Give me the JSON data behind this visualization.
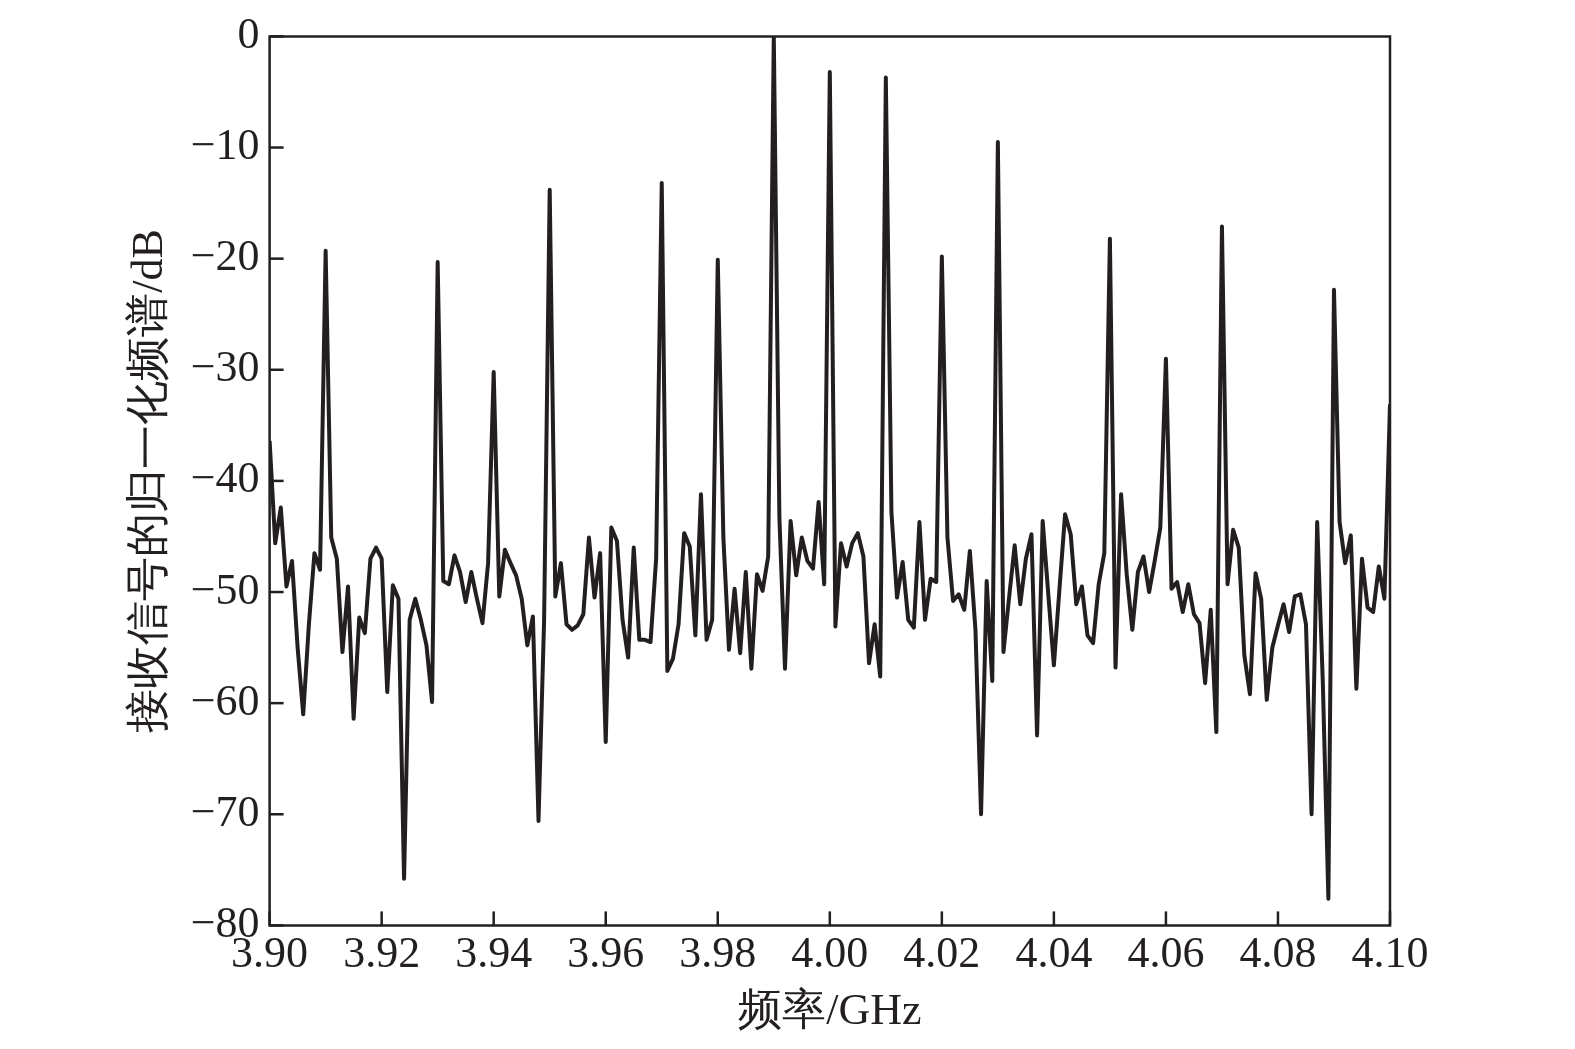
{
  "chart_data": {
    "type": "line",
    "xlabel": "频率/GHz",
    "ylabel": "接收信号的归一化频谱/dB",
    "x": [
      3.9,
      3.901,
      3.902,
      3.903,
      3.904,
      3.905,
      3.906,
      3.907,
      3.908,
      3.909,
      3.91,
      3.911,
      3.912,
      3.913,
      3.914,
      3.915,
      3.916,
      3.917,
      3.918,
      3.919,
      3.92,
      3.921,
      3.922,
      3.923,
      3.924,
      3.925,
      3.926,
      3.927,
      3.928,
      3.929,
      3.93,
      3.931,
      3.932,
      3.933,
      3.934,
      3.935,
      3.936,
      3.937,
      3.938,
      3.939,
      3.94,
      3.941,
      3.942,
      3.943,
      3.944,
      3.945,
      3.946,
      3.947,
      3.948,
      3.949,
      3.95,
      3.951,
      3.952,
      3.953,
      3.954,
      3.955,
      3.956,
      3.957,
      3.958,
      3.959,
      3.96,
      3.961,
      3.962,
      3.963,
      3.964,
      3.965,
      3.966,
      3.967,
      3.968,
      3.969,
      3.97,
      3.971,
      3.972,
      3.973,
      3.974,
      3.975,
      3.976,
      3.977,
      3.978,
      3.979,
      3.98,
      3.981,
      3.982,
      3.983,
      3.984,
      3.985,
      3.986,
      3.987,
      3.988,
      3.989,
      3.99,
      3.991,
      3.992,
      3.993,
      3.994,
      3.995,
      3.996,
      3.997,
      3.998,
      3.999,
      4.0,
      4.001,
      4.002,
      4.003,
      4.004,
      4.005,
      4.006,
      4.007,
      4.008,
      4.009,
      4.01,
      4.011,
      4.012,
      4.013,
      4.014,
      4.015,
      4.016,
      4.017,
      4.018,
      4.019,
      4.02,
      4.021,
      4.022,
      4.023,
      4.024,
      4.025,
      4.026,
      4.027,
      4.028,
      4.029,
      4.03,
      4.031,
      4.032,
      4.033,
      4.034,
      4.035,
      4.036,
      4.037,
      4.038,
      4.039,
      4.04,
      4.041,
      4.042,
      4.043,
      4.044,
      4.045,
      4.046,
      4.047,
      4.048,
      4.049,
      4.05,
      4.051,
      4.052,
      4.053,
      4.054,
      4.055,
      4.056,
      4.057,
      4.058,
      4.059,
      4.06,
      4.061,
      4.062,
      4.063,
      4.064,
      4.065,
      4.066,
      4.067,
      4.068,
      4.069,
      4.07,
      4.071,
      4.072,
      4.073,
      4.074,
      4.075,
      4.076,
      4.077,
      4.078,
      4.079,
      4.08,
      4.081,
      4.082,
      4.083,
      4.084,
      4.085,
      4.086,
      4.087,
      4.088,
      4.089,
      4.09,
      4.091,
      4.092,
      4.093,
      4.094,
      4.095,
      4.096,
      4.097,
      4.098,
      4.099,
      4.1
    ],
    "series": [
      {
        "color": "#231f20",
        "values": [
          -36.4,
          -45.6,
          -42.4,
          -49.5,
          -47.2,
          -55,
          -61,
          -53,
          -46.5,
          -48,
          -19.3,
          -45.1,
          -47,
          -55.4,
          -49.5,
          -61.4,
          -52.3,
          -53.7,
          -47,
          -46,
          -47,
          -59,
          -49.4,
          -50.6,
          -75.8,
          -52.5,
          -50.6,
          -52.5,
          -54.8,
          -59.9,
          -20.3,
          -49,
          -49.3,
          -46.7,
          -48.2,
          -50.9,
          -48.2,
          -50.6,
          -52.8,
          -47.4,
          -30.2,
          -50.4,
          -46.2,
          -47.4,
          -48.5,
          -50.6,
          -54.8,
          -52.2,
          -70.6,
          -52.5,
          -13.8,
          -50.4,
          -47.4,
          -52.9,
          -53.4,
          -53,
          -52,
          -45.1,
          -50.5,
          -46.5,
          -63.5,
          -44.2,
          -45.4,
          -52.5,
          -55.9,
          -46,
          -54.3,
          -54.3,
          -54.5,
          -47,
          -13.2,
          -57.1,
          -56,
          -52.9,
          -44.7,
          -45.9,
          -53.9,
          -41.2,
          -54.3,
          -52.5,
          -20.1,
          -45.1,
          -55.2,
          -49.7,
          -55.5,
          -48.2,
          -56.9,
          -48.4,
          -49.9,
          -46.8,
          0,
          -43.3,
          -56.9,
          -43.6,
          -48.5,
          -45.1,
          -47.2,
          -47.9,
          -41.9,
          -49.3,
          -3.2,
          -53.1,
          -45.6,
          -47.7,
          -45.6,
          -44.7,
          -46.8,
          -56.4,
          -52.9,
          -57.6,
          -3.7,
          -42.8,
          -50.5,
          -47.3,
          -52.5,
          -53.2,
          -43.7,
          -52.5,
          -48.8,
          -49.1,
          -19.8,
          -45.1,
          -50.8,
          -50.2,
          -51.6,
          -46.3,
          -53.4,
          -70,
          -49,
          -58,
          -9.5,
          -55.4,
          -50.5,
          -45.8,
          -51.1,
          -47,
          -44.8,
          -62.9,
          -43.6,
          -50.2,
          -56.6,
          -49.7,
          -43,
          -44.8,
          -51.1,
          -49.5,
          -53.9,
          -54.6,
          -49.3,
          -46.5,
          -18.2,
          -56.8,
          -41.2,
          -48.4,
          -53.4,
          -48.2,
          -46.8,
          -50,
          -47.2,
          -44.2,
          -29,
          -49.7,
          -49.1,
          -51.8,
          -49.3,
          -52,
          -52.8,
          -58.2,
          -51.6,
          -62.6,
          -17.1,
          -49.3,
          -44.4,
          -46,
          -55.7,
          -59.2,
          -48.3,
          -50.6,
          -59.7,
          -55,
          -53,
          -51.1,
          -53.6,
          -50.4,
          -50.2,
          -52.9,
          -70,
          -43.7,
          -58,
          -77.6,
          -22.8,
          -43.7,
          -47.4,
          -44.9,
          -58.7,
          -47,
          -51.4,
          -51.8,
          -47.7,
          -50.6,
          -33.1
        ]
      }
    ],
    "xlim": [
      3.9,
      4.1
    ],
    "xticks": [
      {
        "value": 3.9,
        "label": "3.90"
      },
      {
        "value": 3.92,
        "label": "3.92"
      },
      {
        "value": 3.94,
        "label": "3.94"
      },
      {
        "value": 3.96,
        "label": "3.96"
      },
      {
        "value": 3.98,
        "label": "3.98"
      },
      {
        "value": 4.0,
        "label": "4.00"
      },
      {
        "value": 4.02,
        "label": "4.02"
      },
      {
        "value": 4.04,
        "label": "4.04"
      },
      {
        "value": 4.06,
        "label": "4.06"
      },
      {
        "value": 4.08,
        "label": "4.08"
      },
      {
        "value": 4.1,
        "label": "4.10"
      }
    ],
    "ylim": [
      -80,
      0
    ],
    "yticks": [
      {
        "value": -80,
        "label": "−80"
      },
      {
        "value": -70,
        "label": "−70"
      },
      {
        "value": -60,
        "label": "−60"
      },
      {
        "value": -50,
        "label": "−50"
      },
      {
        "value": -40,
        "label": "−40"
      },
      {
        "value": -30,
        "label": "−30"
      },
      {
        "value": -20,
        "label": "−20"
      },
      {
        "value": -10,
        "label": "−10"
      },
      0
    ]
  }
}
